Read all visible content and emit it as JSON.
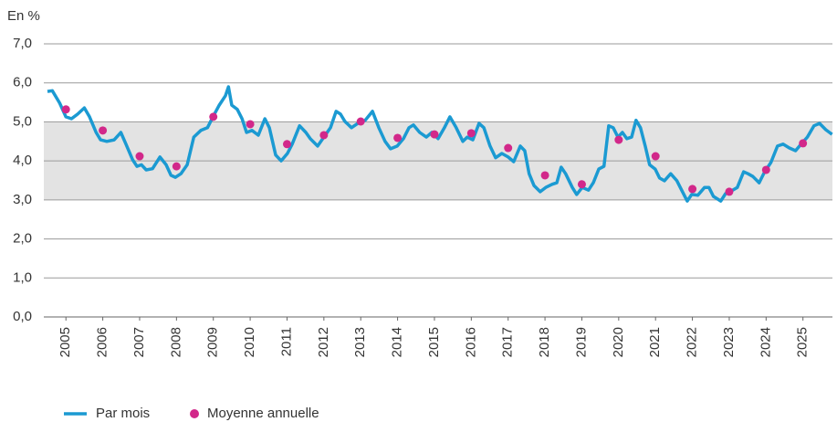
{
  "chart_data": {
    "type": "line",
    "y_label": "En %",
    "ylim": [
      0,
      7
    ],
    "yticks": [
      {
        "value": 0,
        "label": "0,0"
      },
      {
        "value": 1,
        "label": "1,0"
      },
      {
        "value": 2,
        "label": "2,0"
      },
      {
        "value": 3,
        "label": "3,0"
      },
      {
        "value": 4,
        "label": "4,0"
      },
      {
        "value": 5,
        "label": "5,0"
      },
      {
        "value": 6,
        "label": "6,0"
      },
      {
        "value": 7,
        "label": "7,0"
      }
    ],
    "xlim": [
      2004.4,
      2025.8
    ],
    "xticks": [
      2005,
      2006,
      2007,
      2008,
      2009,
      2010,
      2011,
      2012,
      2013,
      2014,
      2015,
      2016,
      2017,
      2018,
      2019,
      2020,
      2021,
      2022,
      2023,
      2024,
      2025
    ],
    "grid": true,
    "band": [
      3,
      5
    ],
    "band_color": "#e3e3e3",
    "legend": "bottom-left",
    "series": [
      {
        "name": "Par mois",
        "color": "#1b9ad2",
        "type": "line",
        "x": [
          2004.5,
          2004.63,
          2004.83,
          2005.0,
          2005.15,
          2005.32,
          2005.5,
          2005.64,
          2005.82,
          2005.94,
          2006.11,
          2006.31,
          2006.49,
          2006.63,
          2006.81,
          2006.93,
          2007.05,
          2007.18,
          2007.35,
          2007.55,
          2007.72,
          2007.85,
          2007.97,
          2008.12,
          2008.29,
          2008.47,
          2008.66,
          2008.84,
          2008.99,
          2009.16,
          2009.33,
          2009.41,
          2009.5,
          2009.65,
          2009.78,
          2009.9,
          2010.05,
          2010.22,
          2010.4,
          2010.52,
          2010.69,
          2010.84,
          2011.01,
          2011.14,
          2011.34,
          2011.51,
          2011.63,
          2011.83,
          2012.0,
          2012.18,
          2012.33,
          2012.45,
          2012.57,
          2012.75,
          2012.92,
          2013.12,
          2013.32,
          2013.49,
          2013.66,
          2013.81,
          2013.99,
          2014.16,
          2014.31,
          2014.43,
          2014.6,
          2014.78,
          2014.93,
          2015.1,
          2015.27,
          2015.42,
          2015.59,
          2015.77,
          2015.89,
          2016.04,
          2016.21,
          2016.34,
          2016.51,
          2016.66,
          2016.83,
          2017.0,
          2017.15,
          2017.33,
          2017.45,
          2017.57,
          2017.7,
          2017.87,
          2018.02,
          2018.19,
          2018.32,
          2018.44,
          2018.56,
          2018.74,
          2018.86,
          2019.01,
          2019.18,
          2019.31,
          2019.46,
          2019.6,
          2019.73,
          2019.85,
          2019.98,
          2020.1,
          2020.22,
          2020.35,
          2020.47,
          2020.59,
          2020.72,
          2020.84,
          2020.99,
          2021.11,
          2021.24,
          2021.41,
          2021.58,
          2021.73,
          2021.86,
          2021.98,
          2022.15,
          2022.33,
          2022.45,
          2022.57,
          2022.77,
          2022.9,
          2023.02,
          2023.22,
          2023.39,
          2023.51,
          2023.64,
          2023.81,
          2023.96,
          2024.13,
          2024.31,
          2024.46,
          2024.63,
          2024.8,
          2024.95,
          2025.12,
          2025.3,
          2025.45,
          2025.62,
          2025.79
        ],
        "values": [
          5.78,
          5.8,
          5.48,
          5.13,
          5.08,
          5.2,
          5.36,
          5.13,
          4.73,
          4.54,
          4.5,
          4.54,
          4.73,
          4.43,
          4.03,
          3.86,
          3.9,
          3.77,
          3.8,
          4.1,
          3.9,
          3.63,
          3.58,
          3.67,
          3.9,
          4.61,
          4.78,
          4.85,
          5.13,
          5.43,
          5.67,
          5.9,
          5.43,
          5.32,
          5.08,
          4.73,
          4.78,
          4.66,
          5.08,
          4.85,
          4.15,
          4.0,
          4.19,
          4.43,
          4.9,
          4.73,
          4.57,
          4.38,
          4.61,
          4.85,
          5.27,
          5.2,
          5.01,
          4.85,
          4.96,
          5.04,
          5.27,
          4.85,
          4.5,
          4.31,
          4.38,
          4.57,
          4.85,
          4.92,
          4.73,
          4.61,
          4.73,
          4.57,
          4.85,
          5.13,
          4.85,
          4.5,
          4.61,
          4.54,
          4.96,
          4.85,
          4.38,
          4.08,
          4.19,
          4.1,
          3.98,
          4.38,
          4.26,
          3.67,
          3.37,
          3.21,
          3.32,
          3.4,
          3.44,
          3.84,
          3.67,
          3.32,
          3.14,
          3.32,
          3.25,
          3.44,
          3.79,
          3.86,
          4.9,
          4.85,
          4.61,
          4.73,
          4.57,
          4.61,
          5.04,
          4.85,
          4.38,
          3.9,
          3.79,
          3.56,
          3.49,
          3.67,
          3.49,
          3.21,
          2.97,
          3.14,
          3.12,
          3.32,
          3.32,
          3.09,
          2.97,
          3.16,
          3.21,
          3.32,
          3.72,
          3.67,
          3.6,
          3.44,
          3.72,
          3.96,
          4.38,
          4.43,
          4.33,
          4.26,
          4.43,
          4.61,
          4.9,
          4.96,
          4.8,
          4.68
        ]
      },
      {
        "name": "Moyenne annuelle",
        "color": "#d2288a",
        "type": "scatter",
        "x": [
          2005,
          2006,
          2007,
          2008,
          2009,
          2010,
          2011,
          2012,
          2013,
          2014,
          2015,
          2016,
          2017,
          2018,
          2019,
          2020,
          2021,
          2022,
          2023,
          2024,
          2025
        ],
        "values": [
          5.32,
          4.78,
          4.12,
          3.86,
          5.13,
          4.94,
          4.43,
          4.66,
          5.01,
          4.59,
          4.68,
          4.71,
          4.33,
          3.63,
          3.4,
          4.54,
          4.12,
          3.28,
          3.21,
          3.77,
          4.45
        ]
      }
    ]
  }
}
